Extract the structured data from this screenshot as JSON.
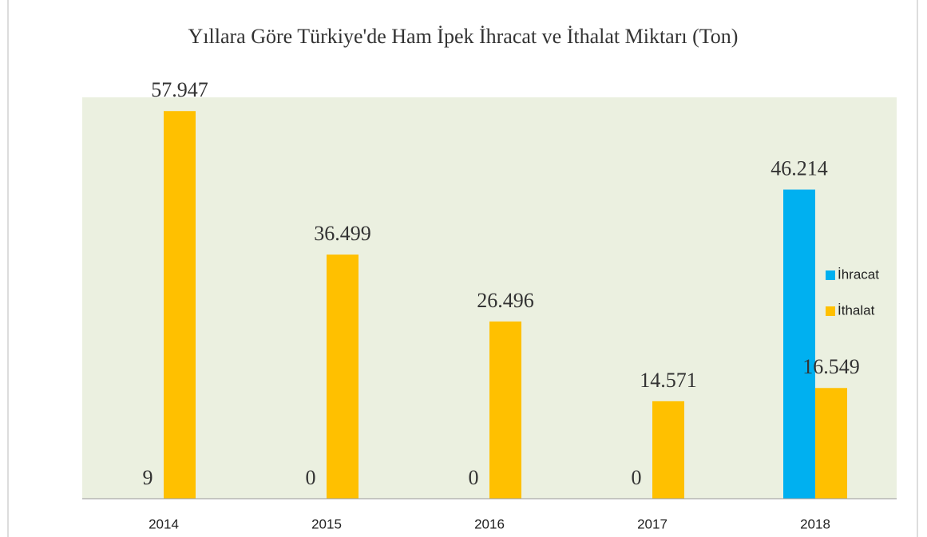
{
  "chart_data": {
    "type": "bar",
    "title": "Yıllara Göre Türkiye'de Ham İpek İhracat ve İthalat Miktarı (Ton)",
    "categories": [
      "2014",
      "2015",
      "2016",
      "2017",
      "2018"
    ],
    "series": [
      {
        "name": "İhracat",
        "color": "#00b0f0",
        "values": [
          9,
          0,
          0,
          0,
          46214
        ],
        "value_labels": [
          "9",
          "0",
          "0",
          "0",
          "46.214"
        ]
      },
      {
        "name": "İthalat",
        "color": "#ffc000",
        "values": [
          57947,
          36499,
          26496,
          14571,
          16549
        ],
        "value_labels": [
          "57.947",
          "36.499",
          "26.496",
          "14.571",
          "16.549"
        ]
      }
    ],
    "ylim": [
      0,
      60000
    ],
    "legend": "right"
  }
}
